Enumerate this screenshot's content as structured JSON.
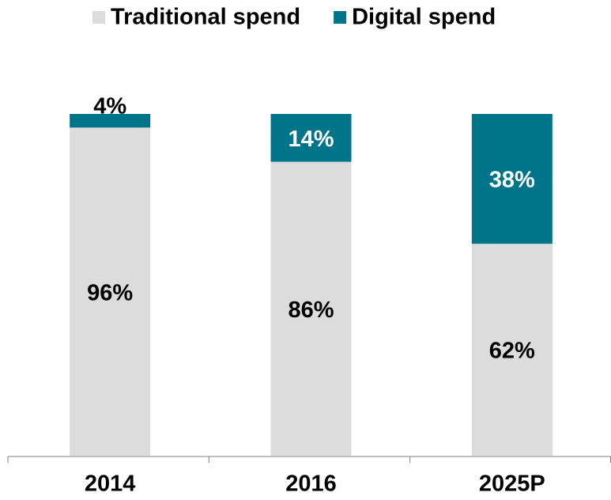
{
  "chart_data": {
    "type": "stacked_bar",
    "categories": [
      "2014",
      "2016",
      "2025P"
    ],
    "series": [
      {
        "name": "Traditional spend",
        "color": "#dcdcdc",
        "label_color": "#000000",
        "values": [
          96,
          86,
          62
        ],
        "value_labels": [
          "96%",
          "86%",
          "62%"
        ]
      },
      {
        "name": "Digital spend",
        "color": "#007589",
        "label_color": "#ffffff",
        "values": [
          4,
          14,
          38
        ],
        "value_labels": [
          "4%",
          "14%",
          "38%"
        ]
      }
    ],
    "legend": "top"
  }
}
